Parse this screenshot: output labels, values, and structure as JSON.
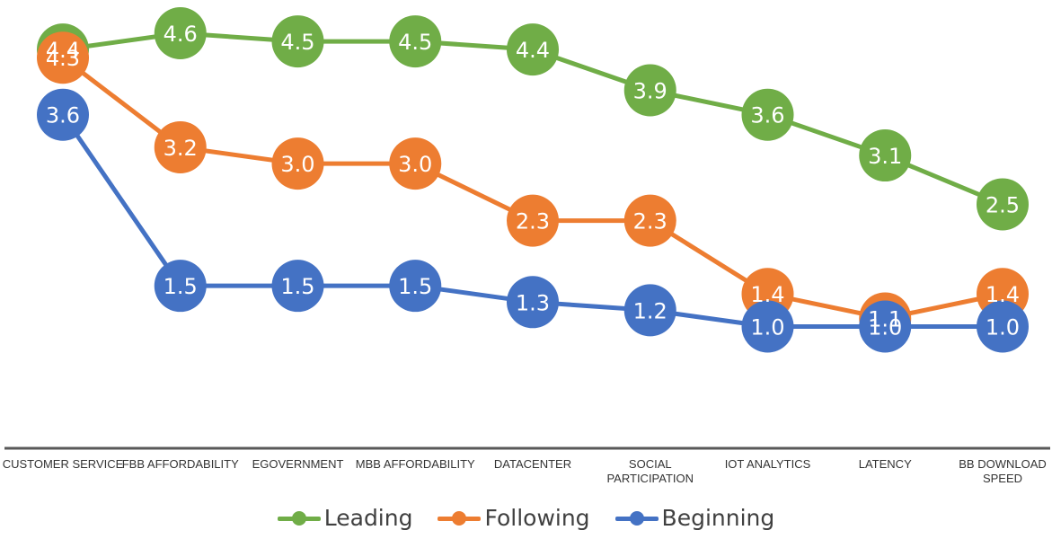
{
  "chart_data": {
    "type": "line",
    "categories": [
      "CUSTOMER SERVICE",
      "FBB AFFORDABILITY",
      "EGOVERNMENT",
      "MBB AFFORDABILITY",
      "DATACENTER",
      "SOCIAL PARTICIPATION",
      "IOT ANALYTICS",
      "LATENCY",
      "BB DOWNLOAD SPEED"
    ],
    "category_lines": [
      [
        "CUSTOMER SERVICE"
      ],
      [
        "FBB AFFORDABILITY"
      ],
      [
        "EGOVERNMENT"
      ],
      [
        "MBB AFFORDABILITY"
      ],
      [
        "DATACENTER"
      ],
      [
        "SOCIAL",
        "PARTICIPATION"
      ],
      [
        "IOT ANALYTICS"
      ],
      [
        "LATENCY"
      ],
      [
        "BB DOWNLOAD",
        "SPEED"
      ]
    ],
    "series": [
      {
        "name": "Leading",
        "color": "#70AD47",
        "values": [
          4.4,
          4.6,
          4.5,
          4.5,
          4.4,
          3.9,
          3.6,
          3.1,
          2.5
        ]
      },
      {
        "name": "Following",
        "color": "#ED7D31",
        "values": [
          4.3,
          3.2,
          3.0,
          3.0,
          2.3,
          2.3,
          1.4,
          1.1,
          1.4
        ]
      },
      {
        "name": "Beginning",
        "color": "#4472C4",
        "values": [
          3.6,
          1.5,
          1.5,
          1.5,
          1.3,
          1.2,
          1.0,
          1.0,
          1.0
        ]
      }
    ],
    "legend_position": "bottom",
    "grid": false,
    "data_labels": true
  },
  "legend": [
    {
      "label": "Leading",
      "color": "#70AD47"
    },
    {
      "label": "Following",
      "color": "#ED7D31"
    },
    {
      "label": "Beginning",
      "color": "#4472C4"
    }
  ]
}
